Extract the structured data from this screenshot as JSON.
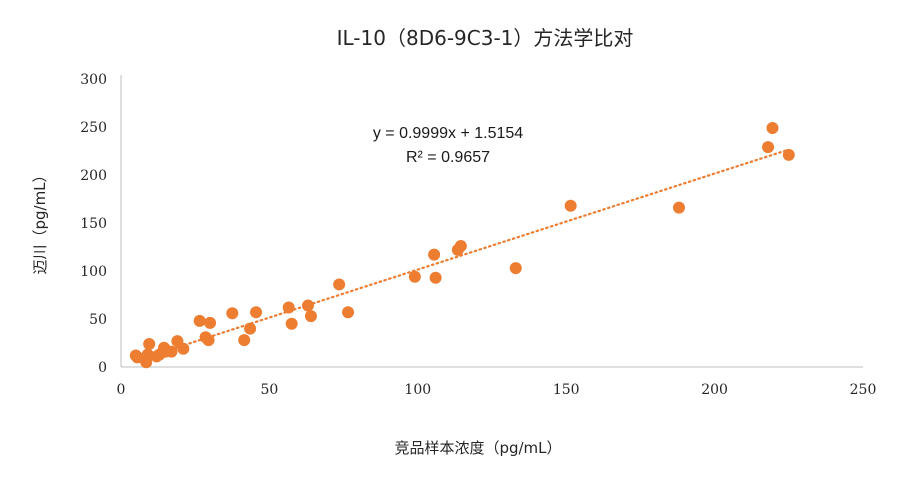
{
  "chart_data": {
    "type": "scatter",
    "title": "IL-10（8D6-9C3-1）方法学比对",
    "xlabel": "竞品样本浓度（pg/mL）",
    "ylabel": "迈川（pg/mL）",
    "xlim": [
      0,
      250
    ],
    "ylim": [
      0,
      300
    ],
    "xticks": [
      "0",
      "50",
      "100",
      "150",
      "200",
      "250"
    ],
    "yticks": [
      "0",
      "50",
      "100",
      "150",
      "200",
      "250",
      "300"
    ],
    "grid": false,
    "legend": "none",
    "marker_color": "#ED7D31",
    "trendline": {
      "type": "linear",
      "slope": 0.9999,
      "intercept": 1.5154,
      "x_range": [
        7,
        224
      ],
      "equation_label": "y = 0.9999x + 1.5154",
      "r2_label": "R² = 0.9657"
    },
    "points": [
      {
        "x": 5,
        "y": 12
      },
      {
        "x": 5.5,
        "y": 10
      },
      {
        "x": 8.5,
        "y": 5
      },
      {
        "x": 9,
        "y": 13
      },
      {
        "x": 9.5,
        "y": 24
      },
      {
        "x": 12,
        "y": 11
      },
      {
        "x": 13,
        "y": 13
      },
      {
        "x": 14.5,
        "y": 20
      },
      {
        "x": 15,
        "y": 16
      },
      {
        "x": 17,
        "y": 16
      },
      {
        "x": 19,
        "y": 27
      },
      {
        "x": 21,
        "y": 19
      },
      {
        "x": 26.5,
        "y": 48
      },
      {
        "x": 28.5,
        "y": 31
      },
      {
        "x": 29.5,
        "y": 28
      },
      {
        "x": 30,
        "y": 46
      },
      {
        "x": 37.5,
        "y": 56
      },
      {
        "x": 41.5,
        "y": 28
      },
      {
        "x": 43.5,
        "y": 40
      },
      {
        "x": 45.5,
        "y": 57
      },
      {
        "x": 56.5,
        "y": 62
      },
      {
        "x": 57.5,
        "y": 45
      },
      {
        "x": 63,
        "y": 64
      },
      {
        "x": 64,
        "y": 53
      },
      {
        "x": 73.5,
        "y": 86
      },
      {
        "x": 76.5,
        "y": 57
      },
      {
        "x": 99,
        "y": 94
      },
      {
        "x": 105.5,
        "y": 117
      },
      {
        "x": 106,
        "y": 93
      },
      {
        "x": 113.5,
        "y": 122
      },
      {
        "x": 114.5,
        "y": 126
      },
      {
        "x": 133,
        "y": 103
      },
      {
        "x": 151.5,
        "y": 168
      },
      {
        "x": 188,
        "y": 166
      },
      {
        "x": 218,
        "y": 229
      },
      {
        "x": 219.5,
        "y": 249
      },
      {
        "x": 225,
        "y": 221
      }
    ]
  }
}
